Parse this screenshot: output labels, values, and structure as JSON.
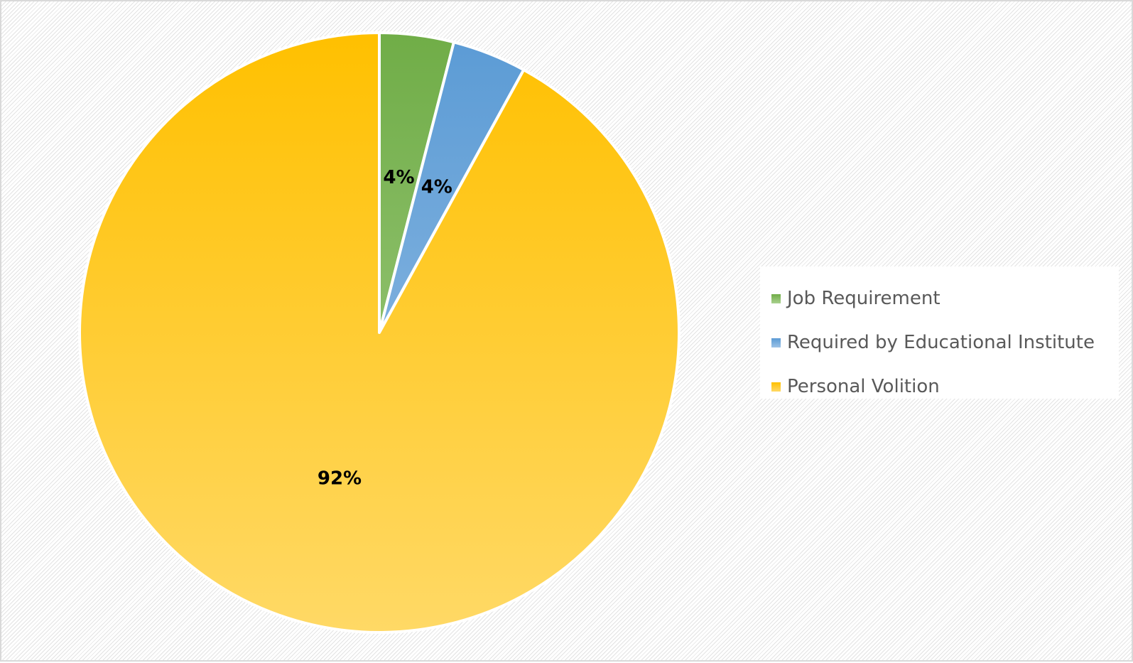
{
  "chart_data": {
    "type": "pie",
    "categories": [
      "Job Requirement",
      "Required by Educational Institute",
      "Personal Volition"
    ],
    "values": [
      4,
      4,
      92
    ],
    "data_labels": [
      "4%",
      "4%",
      "92%"
    ],
    "colors": [
      {
        "top": "#70ad47",
        "bottom": "#a9d18e"
      },
      {
        "top": "#5b9bd5",
        "bottom": "#9dc3e6"
      },
      {
        "top": "#ffc000",
        "bottom": "#ffd966"
      }
    ],
    "start_angle_deg": 0,
    "direction": "clockwise",
    "legend_position": "right",
    "title": "",
    "slice_border_color": "#ffffff"
  }
}
